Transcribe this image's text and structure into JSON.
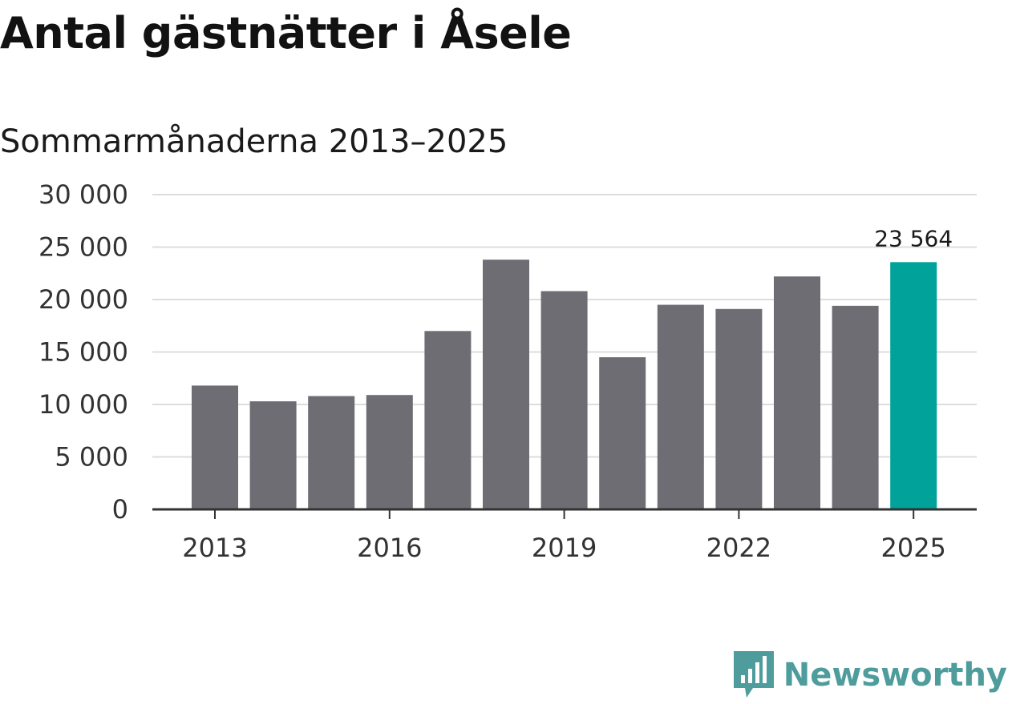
{
  "title": "Antal gästnätter i Åsele",
  "subtitle": "Sommarmånaderna 2013–2025",
  "brand": {
    "name": "Newsworthy",
    "icon": "newsworthy-logo-icon",
    "color": "#4e9c9c"
  },
  "colors": {
    "bar": "#6e6d73",
    "highlight": "#00a29a",
    "grid": "#dddddd",
    "axis": "#333333"
  },
  "chart_data": {
    "type": "bar",
    "categories": [
      "2013",
      "2014",
      "2015",
      "2016",
      "2017",
      "2018",
      "2019",
      "2020",
      "2021",
      "2022",
      "2023",
      "2024",
      "2025"
    ],
    "values": [
      11800,
      10300,
      10800,
      10900,
      17000,
      23800,
      20800,
      14500,
      19500,
      19100,
      22200,
      19400,
      23564
    ],
    "x_tick_labels": [
      "2013",
      "2016",
      "2019",
      "2022",
      "2025"
    ],
    "y_ticks": [
      0,
      5000,
      10000,
      15000,
      20000,
      25000,
      30000
    ],
    "y_tick_labels": [
      "0",
      "5 000",
      "10 000",
      "15 000",
      "20 000",
      "25 000",
      "30 000"
    ],
    "ylim": [
      0,
      30000
    ],
    "highlight_index": 12,
    "data_labels": [
      {
        "index": 12,
        "text": "23 564"
      }
    ],
    "xlabel": "",
    "ylabel": "",
    "grid": true
  }
}
